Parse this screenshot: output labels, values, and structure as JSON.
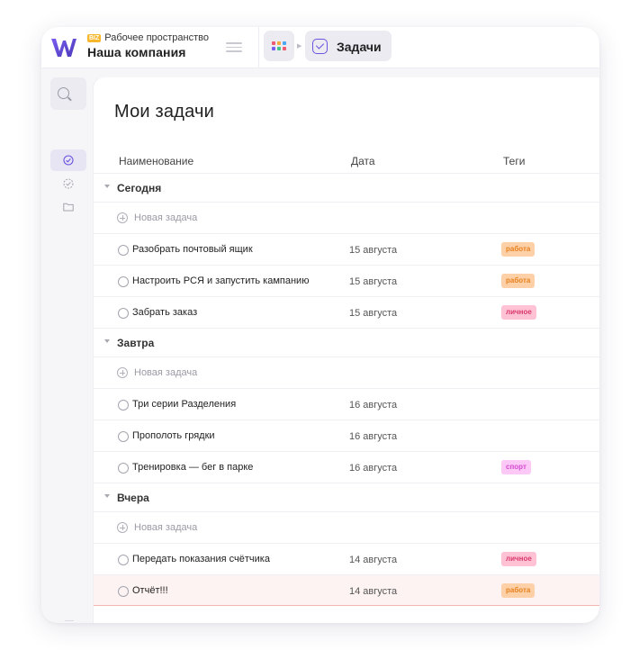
{
  "workspace": {
    "badge": "BIZ",
    "label": "Рабочее пространство",
    "company": "Наша компания"
  },
  "breadcrumb": {
    "tab_label": "Задачи"
  },
  "page": {
    "title": "Мои задачи"
  },
  "columns": {
    "name": "Наименование",
    "date": "Дата",
    "tags": "Теги"
  },
  "new_task_label": "Новая задача",
  "colors": {
    "accent": "#6b54e0",
    "tag_work_bg": "#fdd0a8",
    "tag_work_fg": "#e8821f",
    "tag_personal_bg": "#ffc2d5",
    "tag_personal_fg": "#d93a6c",
    "tag_sport_bg": "#fcc8f6",
    "tag_sport_fg": "#d44bd0",
    "highlight_row": "#fdf3f2"
  },
  "groups": [
    {
      "label": "Сегодня",
      "tasks": [
        {
          "name": "Разобрать почтовый ящик",
          "date": "15 августа",
          "tag": "работа",
          "tag_type": "work"
        },
        {
          "name": "Настроить РСЯ и запустить кампанию",
          "date": "15 августа",
          "tag": "работа",
          "tag_type": "work"
        },
        {
          "name": "Забрать заказ",
          "date": "15 августа",
          "tag": "личное",
          "tag_type": "personal"
        }
      ]
    },
    {
      "label": "Завтра",
      "tasks": [
        {
          "name": "Три серии Разделения",
          "date": "16 августа",
          "tag": "",
          "tag_type": ""
        },
        {
          "name": "Прополоть грядки",
          "date": "16 августа",
          "tag": "",
          "tag_type": ""
        },
        {
          "name": "Тренировка — бег в парке",
          "date": "16 августа",
          "tag": "спорт",
          "tag_type": "sport"
        }
      ]
    },
    {
      "label": "Вчера",
      "tasks": [
        {
          "name": "Передать показания счётчика",
          "date": "14 августа",
          "tag": "личное",
          "tag_type": "personal"
        },
        {
          "name": "Отчёт!!!",
          "date": "14 августа",
          "tag": "работа",
          "tag_type": "work",
          "highlighted": true
        }
      ]
    }
  ]
}
